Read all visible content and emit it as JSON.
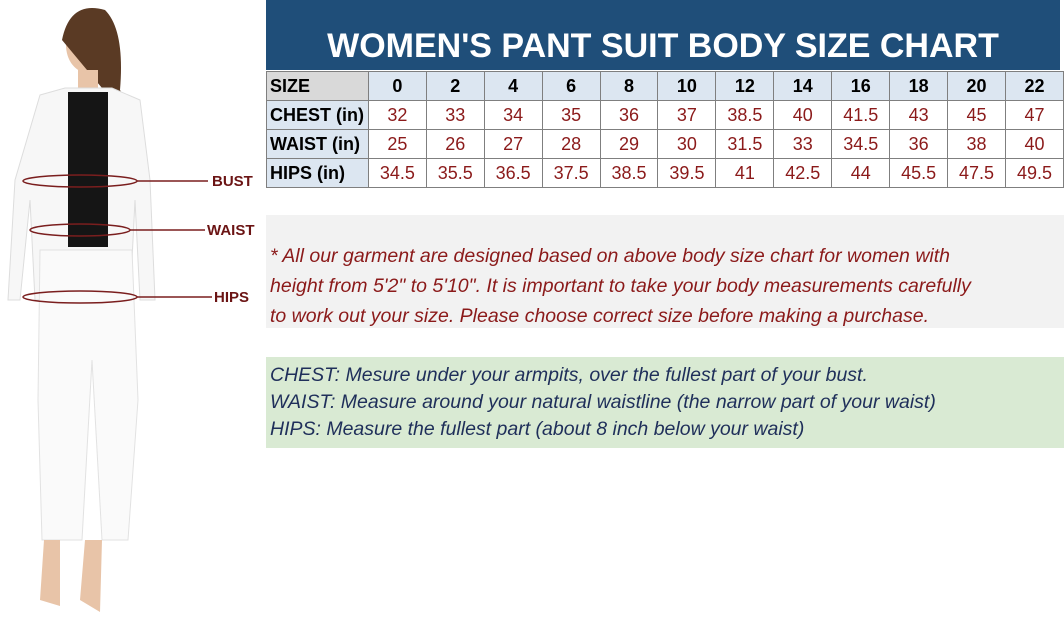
{
  "header": {
    "title": "WOMEN'S PANT SUIT BODY SIZE CHART"
  },
  "figure": {
    "labels": [
      "BUST",
      "WAIST",
      "HIPS"
    ]
  },
  "table": {
    "header": [
      "SIZE",
      0,
      2,
      4,
      6,
      8,
      10,
      12,
      14,
      16,
      18,
      20,
      22
    ],
    "rows": [
      [
        "CHEST (in)",
        32,
        33,
        34,
        35,
        36,
        37,
        38.5,
        40,
        41.5,
        43,
        45,
        47
      ],
      [
        "WAIST (in)",
        25,
        26,
        27,
        28,
        29,
        30,
        31.5,
        33,
        34.5,
        36,
        38,
        40
      ],
      [
        "HIPS (in)",
        34.5,
        35.5,
        36.5,
        37.5,
        38.5,
        39.5,
        41,
        42.5,
        44,
        45.5,
        47.5,
        49.5
      ]
    ]
  },
  "note": {
    "lines": [
      "* All our garment are designed based on above body size chart for women with",
      "height from 5'2\" to 5'10\". It is important to take your body measurements carefully",
      "to work out your size. Please choose correct size before making a purchase."
    ]
  },
  "definitions": {
    "lines": [
      "CHEST: Mesure under your armpits, over the fullest part of your bust.",
      "WAIST: Measure around your natural waistline (the narrow part of your waist)",
      "HIPS: Measure the fullest part (about 8 inch below your waist)"
    ]
  }
}
